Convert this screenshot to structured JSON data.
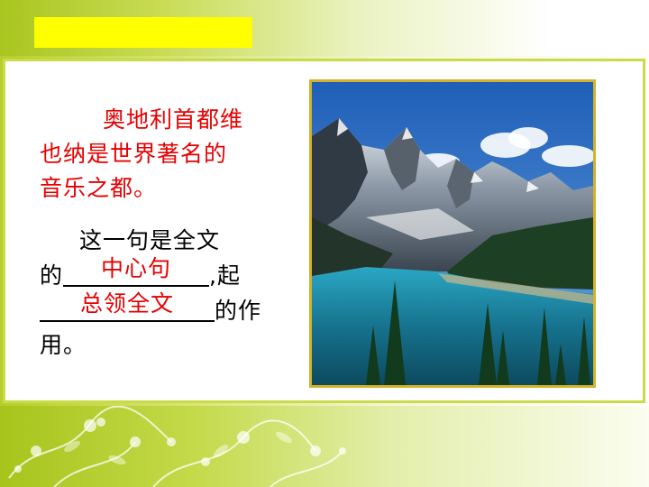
{
  "paragraph1": {
    "lines": [
      "奥地利首都维",
      "也纳是世界著名的",
      "音乐之都。"
    ]
  },
  "paragraph2": {
    "line1": "这一句是全文",
    "line2_prefix": "的",
    "answer1": "中心句",
    "line2_suffix": ",起",
    "answer2": "总领全文",
    "line3_suffix": "的作",
    "line4": "用。"
  },
  "colors": {
    "title_bar": "#ffff00",
    "emphasis_text": "#e60000",
    "frame": "#d1b22a",
    "accent_green": "#b7cf2a"
  }
}
